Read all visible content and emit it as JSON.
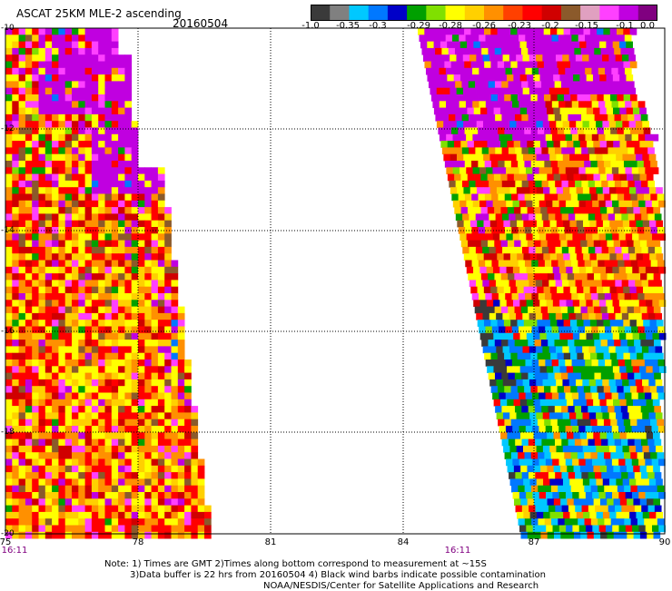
{
  "header": {
    "title": "ASCAT 25KM MLE-2 ascending",
    "date": "20160504"
  },
  "colorbar": {
    "labels": [
      "-1.0",
      "-0.35",
      "-0.3",
      "-0.29",
      "-0.28",
      "-0.26",
      "-0.23",
      "-0.2",
      "-0.15",
      "-0.1",
      "0.0"
    ],
    "colors": [
      "#3a3a3a",
      "#808080",
      "#00c8ff",
      "#0078ff",
      "#0000c8",
      "#00a000",
      "#80e000",
      "#ffff00",
      "#ffd000",
      "#ff9000",
      "#ff4000",
      "#ff0000",
      "#d00000",
      "#8b5a2b",
      "#e0a0c0",
      "#ff40ff",
      "#c000e0",
      "#800080"
    ]
  },
  "axes": {
    "x_ticks": [
      "75",
      "78",
      "81",
      "84",
      "87",
      "90"
    ],
    "y_ticks": [
      "-10",
      "-12",
      "-14",
      "-16",
      "-18",
      "-20"
    ],
    "x_range": [
      75,
      90
    ],
    "y_range": [
      -10,
      -20
    ]
  },
  "times": [
    "16:11",
    "16:11"
  ],
  "notes": {
    "line1": "Note: 1) Times are GMT 2)Times along bottom correspond to measurement at ~15S",
    "line2": "3)Data buffer is 22 hrs from 20160504 4) Black wind barbs indicate possible contamination",
    "line3": "NOAA/NESDIS/Center for Satellite Applications and Research"
  },
  "palette": {
    "magenta": "#c000e0",
    "pink": "#ff40ff",
    "yellow": "#ffff00",
    "gold": "#ffd000",
    "orange": "#ff9000",
    "red": "#ff0000",
    "darkred": "#d00000",
    "brown": "#8b5a2b",
    "green": "#00a000",
    "lime": "#80e000",
    "cyan": "#00c8ff",
    "blue": "#0078ff",
    "navy": "#0000c8",
    "gray": "#3a3a3a"
  }
}
